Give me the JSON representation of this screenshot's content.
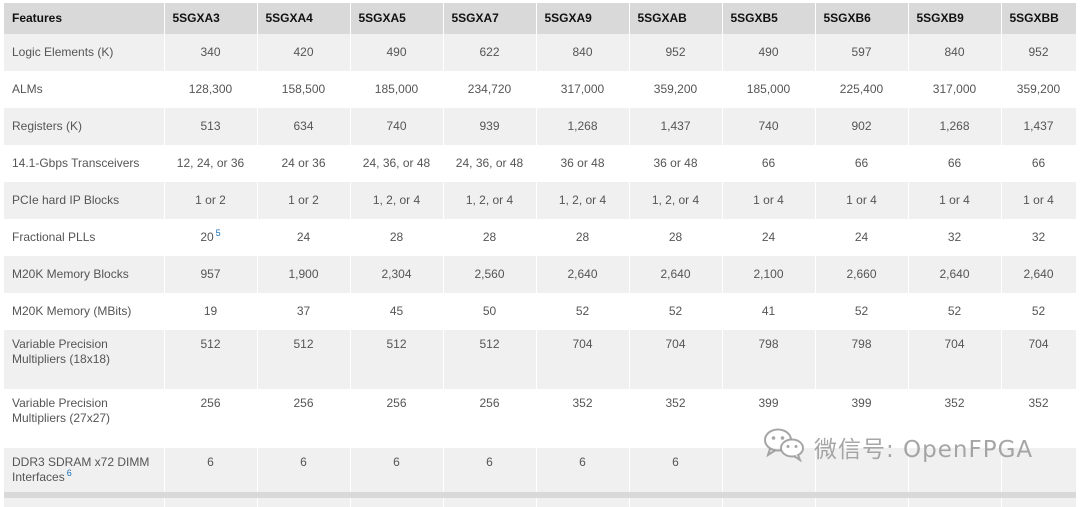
{
  "table": {
    "columns": [
      "Features",
      "5SGXA3",
      "5SGXA4",
      "5SGXA5",
      "5SGXA7",
      "5SGXA9",
      "5SGXAB",
      "5SGXB5",
      "5SGXB6",
      "5SGXB9",
      "5SGXBB"
    ],
    "rows": [
      {
        "feature": "Logic Elements (K)",
        "values": [
          "340",
          "420",
          "490",
          "622",
          "840",
          "952",
          "490",
          "597",
          "840",
          "952"
        ]
      },
      {
        "feature": "ALMs",
        "values": [
          "128,300",
          "158,500",
          "185,000",
          "234,720",
          "317,000",
          "359,200",
          "185,000",
          "225,400",
          "317,000",
          "359,200"
        ]
      },
      {
        "feature": "Registers (K)",
        "values": [
          "513",
          "634",
          "740",
          "939",
          "1,268",
          "1,437",
          "740",
          "902",
          "1,268",
          "1,437"
        ]
      },
      {
        "feature": "14.1-Gbps Transceivers",
        "values": [
          "12, 24, or 36",
          "24 or 36",
          "24, 36, or 48",
          "24, 36, or 48",
          "36 or 48",
          "36 or 48",
          "66",
          "66",
          "66",
          "66"
        ]
      },
      {
        "feature": "PCIe hard IP Blocks",
        "values": [
          "1 or 2",
          "1 or 2",
          "1, 2, or 4",
          "1, 2, or 4",
          "1, 2, or 4",
          "1, 2, or 4",
          "1 or 4",
          "1 or 4",
          "1 or 4",
          "1 or 4"
        ]
      },
      {
        "feature": "Fractional PLLs",
        "values": [
          "20",
          "24",
          "28",
          "28",
          "28",
          "28",
          "24",
          "24",
          "32",
          "32"
        ],
        "footnote": "5"
      },
      {
        "feature": "M20K Memory Blocks",
        "values": [
          "957",
          "1,900",
          "2,304",
          "2,560",
          "2,640",
          "2,640",
          "2,100",
          "2,660",
          "2,640",
          "2,640"
        ]
      },
      {
        "feature": "M20K Memory (MBits)",
        "values": [
          "19",
          "37",
          "45",
          "50",
          "52",
          "52",
          "41",
          "52",
          "52",
          "52"
        ]
      },
      {
        "feature": "Variable Precision Multipliers (18x18)",
        "values": [
          "512",
          "512",
          "512",
          "512",
          "704",
          "704",
          "798",
          "798",
          "704",
          "704"
        ]
      },
      {
        "feature": "Variable Precision Multipliers (27x27)",
        "values": [
          "256",
          "256",
          "256",
          "256",
          "352",
          "352",
          "399",
          "399",
          "352",
          "352"
        ]
      },
      {
        "feature": "DDR3 SDRAM x72 DIMM Interfaces",
        "values": [
          "6",
          "6",
          "6",
          "6",
          "6",
          "6",
          "",
          "",
          "",
          ""
        ],
        "footnote": "6"
      }
    ]
  },
  "watermark": {
    "text": "微信号: OpenFPGA",
    "icon": "wechat-icon"
  }
}
